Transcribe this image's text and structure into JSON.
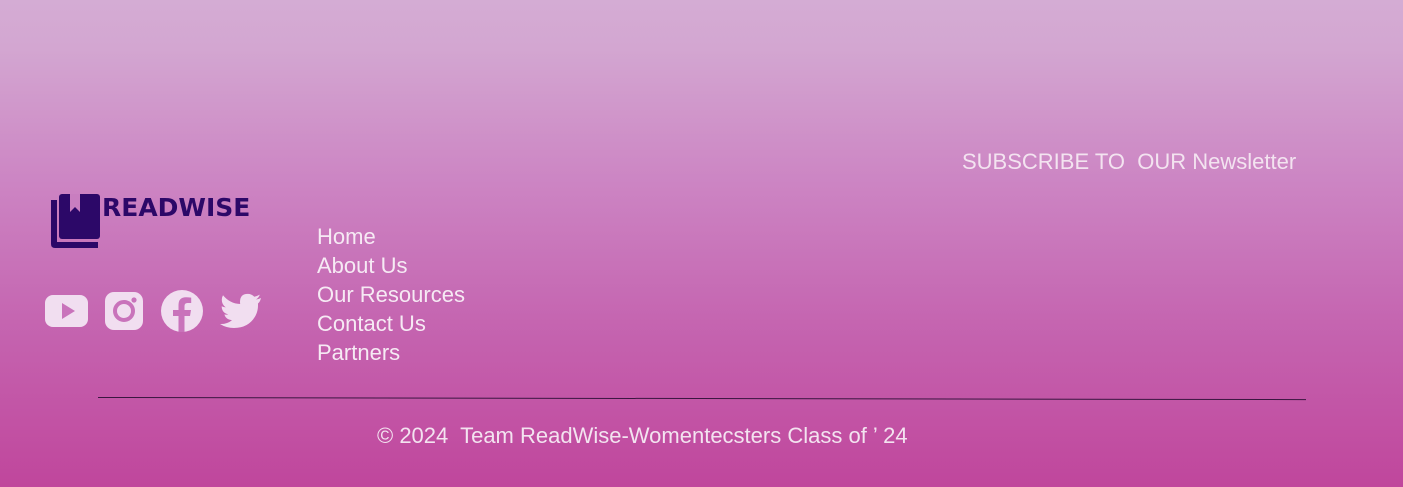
{
  "brand": {
    "name": "READWISE",
    "logo_icon": "book-stack-icon",
    "color": "#2c0868"
  },
  "social": [
    {
      "name": "youtube-icon"
    },
    {
      "name": "instagram-icon"
    },
    {
      "name": "facebook-icon"
    },
    {
      "name": "twitter-icon"
    }
  ],
  "nav": {
    "items": [
      "Home",
      "About Us",
      "Our Resources",
      "Contact Us",
      "Partners"
    ]
  },
  "newsletter": {
    "label": "SUBSCRIBE TO  OUR Newsletter"
  },
  "footer": {
    "copyright": "© 2024  Team ReadWise-Womentecsters Class of ’ 24"
  },
  "colors": {
    "text": "#f6eaf4",
    "icon": "#f1def0",
    "gradient_top": "#d4acd4",
    "gradient_bottom": "#c0469c"
  }
}
